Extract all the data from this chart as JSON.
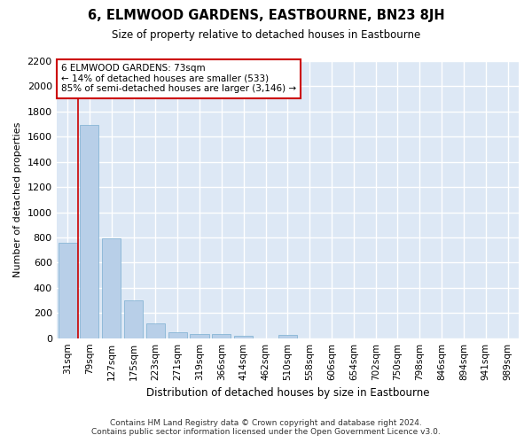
{
  "title": "6, ELMWOOD GARDENS, EASTBOURNE, BN23 8JH",
  "subtitle": "Size of property relative to detached houses in Eastbourne",
  "xlabel": "Distribution of detached houses by size in Eastbourne",
  "ylabel": "Number of detached properties",
  "categories": [
    "31sqm",
    "79sqm",
    "127sqm",
    "175sqm",
    "223sqm",
    "271sqm",
    "319sqm",
    "366sqm",
    "414sqm",
    "462sqm",
    "510sqm",
    "558sqm",
    "606sqm",
    "654sqm",
    "702sqm",
    "750sqm",
    "798sqm",
    "846sqm",
    "894sqm",
    "941sqm",
    "989sqm"
  ],
  "values": [
    760,
    1690,
    790,
    300,
    115,
    45,
    35,
    30,
    20,
    0,
    25,
    0,
    0,
    0,
    0,
    0,
    0,
    0,
    0,
    0,
    0
  ],
  "bar_color": "#b8cfe8",
  "bar_edge_color": "#7aaed0",
  "vline_x": 0.5,
  "vline_color": "#cc0000",
  "annotation_text": "6 ELMWOOD GARDENS: 73sqm\n← 14% of detached houses are smaller (533)\n85% of semi-detached houses are larger (3,146) →",
  "annotation_box_color": "#ffffff",
  "annotation_box_edge_color": "#cc0000",
  "ylim": [
    0,
    2200
  ],
  "yticks": [
    0,
    200,
    400,
    600,
    800,
    1000,
    1200,
    1400,
    1600,
    1800,
    2000,
    2200
  ],
  "plot_bg_color": "#dde8f5",
  "fig_bg_color": "#ffffff",
  "grid_color": "#ffffff",
  "footer_line1": "Contains HM Land Registry data © Crown copyright and database right 2024.",
  "footer_line2": "Contains public sector information licensed under the Open Government Licence v3.0."
}
